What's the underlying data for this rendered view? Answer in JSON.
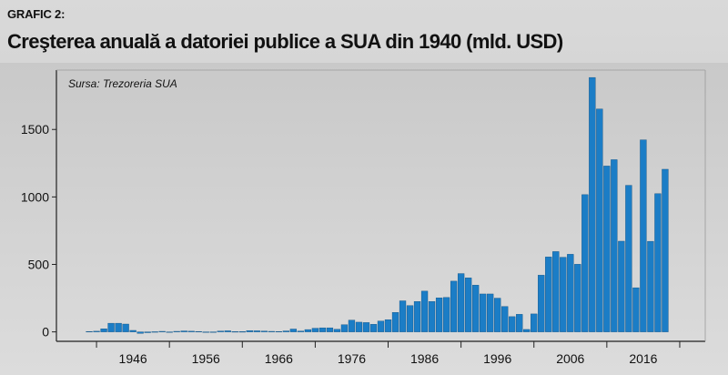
{
  "figure": {
    "label": "GRAFIC 2:",
    "title": "Creşterea anuală a datoriei publice a SUA din 1940 (mld. USD)",
    "source": "Sursa: Trezoreria SUA"
  },
  "colors": {
    "bar": "#1b7dc6",
    "bar_stroke": "#0e4f80",
    "axis": "#222222",
    "background": "#d2d2d2"
  },
  "chart_data": {
    "type": "bar",
    "title": "Creşterea anuală a datoriei publice a SUA din 1940 (mld. USD)",
    "xlabel": "",
    "ylabel": "",
    "ylim": [
      -70,
      1940
    ],
    "xlim": [
      1935.5,
      2024.5
    ],
    "grid": false,
    "y_ticks": [
      0,
      500,
      1000,
      1500
    ],
    "x_ticks": [
      1946,
      1956,
      1966,
      1976,
      1986,
      1996,
      2006,
      2016
    ],
    "categories": [
      1940,
      1941,
      1942,
      1943,
      1944,
      1945,
      1946,
      1947,
      1948,
      1949,
      1950,
      1951,
      1952,
      1953,
      1954,
      1955,
      1956,
      1957,
      1958,
      1959,
      1960,
      1961,
      1962,
      1963,
      1964,
      1965,
      1966,
      1967,
      1968,
      1969,
      1970,
      1971,
      1972,
      1973,
      1974,
      1975,
      1976,
      1977,
      1978,
      1979,
      1980,
      1981,
      1982,
      1983,
      1984,
      1985,
      1986,
      1987,
      1988,
      1989,
      1990,
      1991,
      1992,
      1993,
      1994,
      1995,
      1996,
      1997,
      1998,
      1999,
      2000,
      2001,
      2002,
      2003,
      2004,
      2005,
      2006,
      2007,
      2008,
      2009,
      2010,
      2011,
      2012,
      2013,
      2014,
      2015,
      2016,
      2017,
      2018,
      2019
    ],
    "values": [
      3,
      5,
      23,
      64,
      64,
      58,
      11,
      -11,
      -6,
      1,
      4,
      -2,
      4,
      7,
      5,
      3,
      -2,
      -2,
      6,
      8,
      2,
      2,
      9,
      8,
      6,
      4,
      3,
      7,
      21,
      6,
      17,
      27,
      30,
      30,
      19,
      53,
      87,
      72,
      69,
      56,
      80,
      90,
      144,
      230,
      195,
      225,
      302,
      225,
      252,
      255,
      376,
      432,
      400,
      346,
      281,
      281,
      250,
      188,
      113,
      130,
      18,
      133,
      420,
      555,
      595,
      553,
      575,
      501,
      1017,
      1885,
      1652,
      1229,
      1276,
      672,
      1086,
      327,
      1423,
      671,
      1024,
      1205
    ]
  }
}
